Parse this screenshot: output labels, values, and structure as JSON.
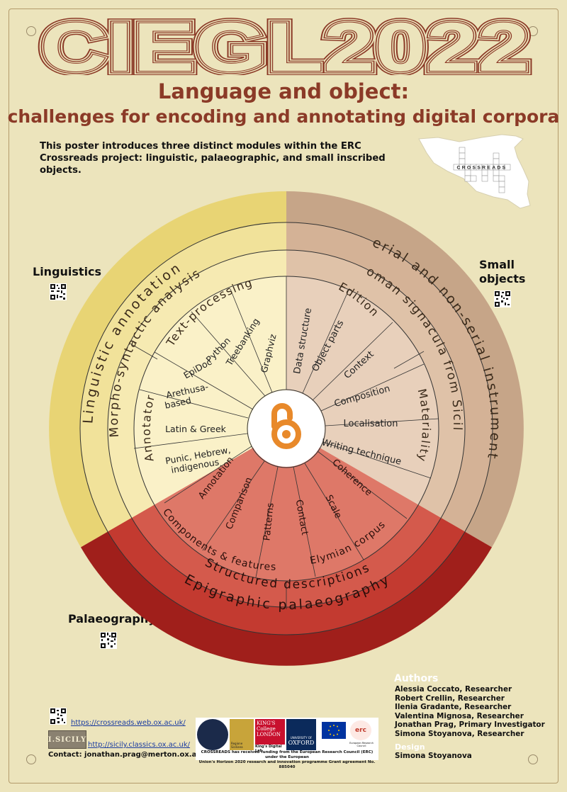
{
  "conference_title": "CIEGL2022",
  "title_line1": "Language and object:",
  "title_line2": "challenges for encoding and annotating digital corpora",
  "intro_text": "This poster introduces three distinct modules within the ERC Crossreads project: linguistic, palaeographic, and small inscribed objects.",
  "map_word": "CROSSREADS",
  "modules": {
    "linguistics": "Linguistics",
    "small_objects": "Small objects",
    "palaeography": "Palaeography"
  },
  "wheel": {
    "linguistics_outer": "Linguistic annotation",
    "linguistics_mid": "Morpho-syntactic analysis",
    "linguistics_inner1": "Text-processing",
    "linguistics_inner2": "Annotator",
    "linguistics_spokes": [
      "Graphviz",
      "Treebanking",
      "Python",
      "EpiDoc",
      "Arethusa-",
      "based",
      "Latin & Greek",
      "Punic, Hebrew,",
      "indigenous"
    ],
    "objects_outer": "Serial and non-serial instrumenta",
    "objects_mid": "Roman signacula from Sicily",
    "objects_inner1": "Edition",
    "objects_inner2": "Materiality",
    "objects_spokes": [
      "Data structure",
      "Object parts",
      "Context",
      "Composition",
      "Localisation",
      "Writing technique"
    ],
    "palaeo_outer": "Epigraphic palaeography",
    "palaeo_mid": "Structured descriptions",
    "palaeo_inner1": "Components & features",
    "palaeo_inner2": "Elymian corpus",
    "palaeo_spokes": [
      "Annotation",
      "Comparison",
      "Patterns",
      "Contact",
      "Scale",
      "Coherence"
    ]
  },
  "authors": {
    "heading": "Authors",
    "list": [
      "Alessia Coccato, Researcher",
      "Robert Crellin, Researcher",
      "Ilenia Gradante, Researcher",
      "Valentina Mignosa, Researcher",
      "Jonathan Prag, Primary Investigator",
      "Simona Stoyanova, Researcher"
    ],
    "design_heading": "Design",
    "designer": "Simona Stoyanova"
  },
  "links": {
    "crossreads": "https://crossreads.web.ox.ac.uk/",
    "isicily": "http://sicily.classics.ox.ac.uk/",
    "contact": "Contact: jonathan.prag@merton.ox.ac.uk",
    "isicily_logo": "I.SICILY"
  },
  "logos": {
    "kings_college": "KING'S College LONDON",
    "kings_lab": "King's Digital Lab",
    "oxford": "OXFORD",
    "oxford_small": "UNIVERSITY OF",
    "regione": "Regione Siciliana",
    "erc": "erc",
    "erc_small": "European Research Council"
  },
  "funding_line1": "CROSSREADS has received funding from the European Research Council (ERC) under the European",
  "funding_line2": "Union's Horizon 2020 research and innovation programme Grant agreement No. 885040",
  "colors": {
    "background": "#ece4bc",
    "title": "#8b3a27",
    "linguistics_outer": "#e8d474",
    "objects_outer": "#c6a588",
    "palaeo_outer": "#a01f1b"
  }
}
